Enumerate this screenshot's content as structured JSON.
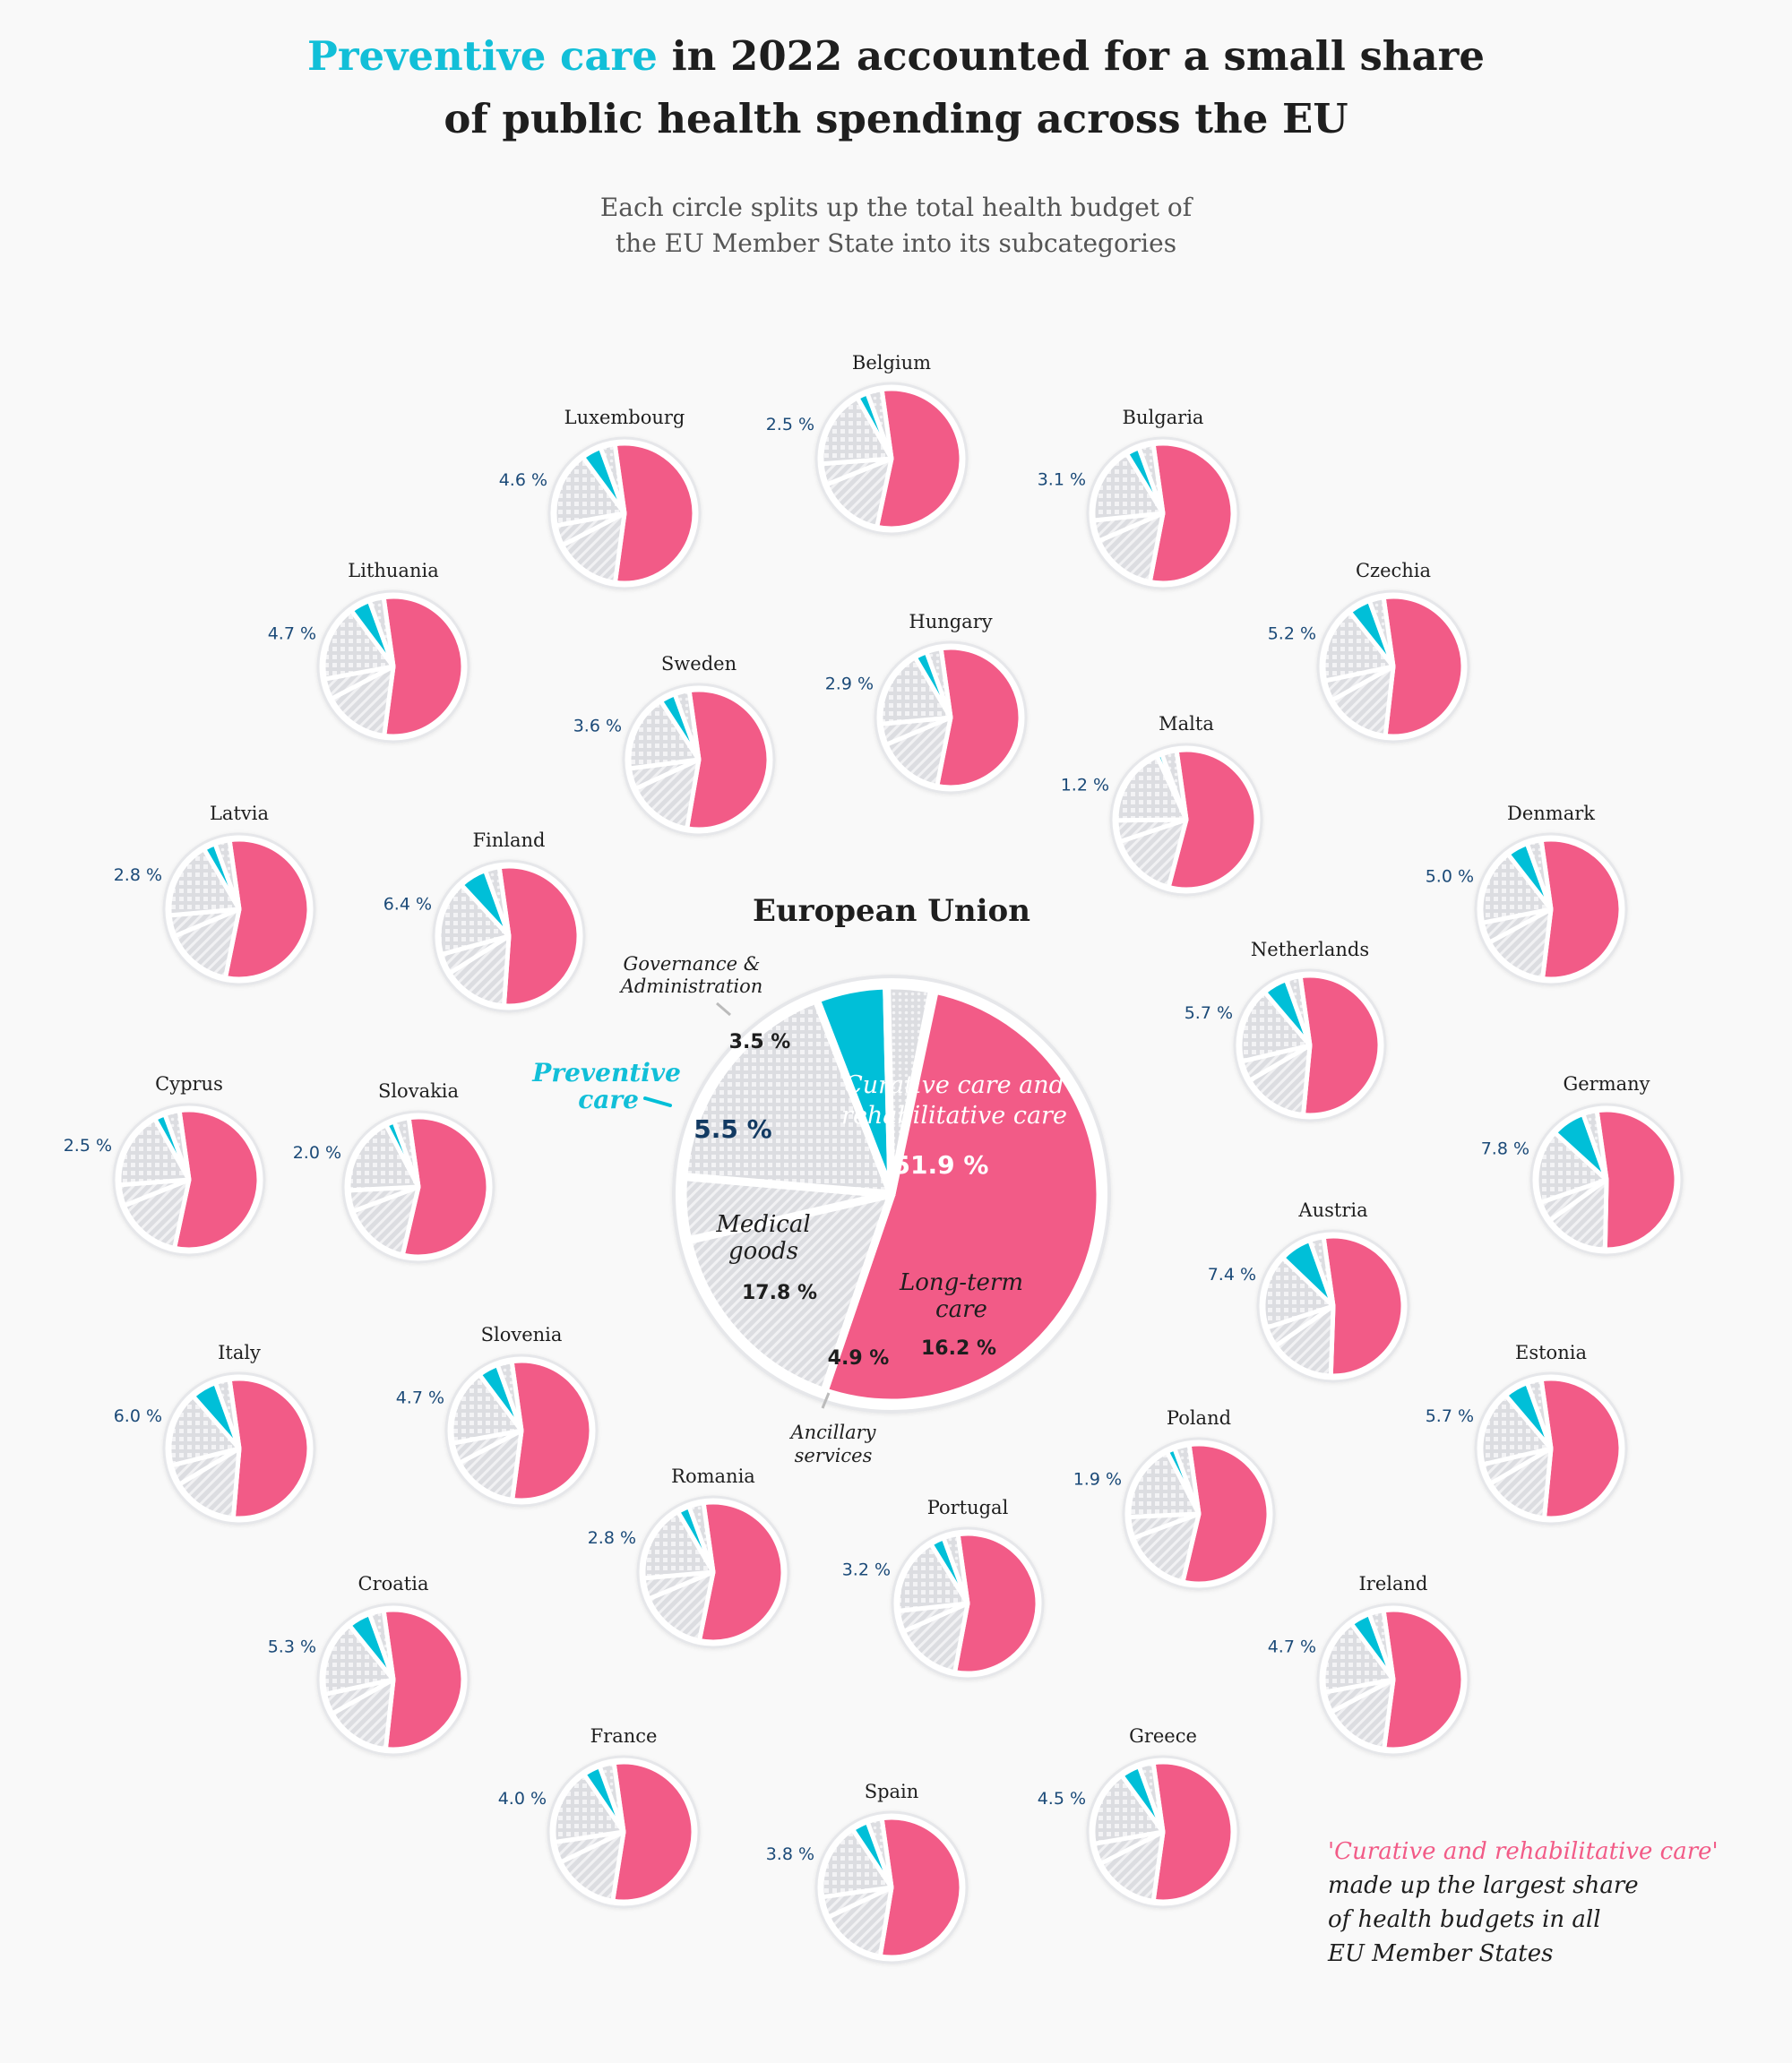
{
  "header": {
    "title_highlight": "Preventive care",
    "title_rest_line1": " in 2022 accounted for a small share",
    "title_line2": "of public health spending across the EU",
    "subtitle_line1": "Each circle splits up the total health budget of",
    "subtitle_line2": "the EU Member State into its subcategories"
  },
  "colors": {
    "preventive": "#00bfd8",
    "curative": "#f25b87",
    "other": "#dcdde1",
    "ring": "#e6e7ea",
    "pct_text": "#1b4a78"
  },
  "eu": {
    "name": "European Union",
    "segments": [
      {
        "key": "governance",
        "label_line1": "Governance &",
        "label_line2": "Administration",
        "value": 3.5,
        "display": "3.5 %"
      },
      {
        "key": "preventive",
        "label_line1": "Preventive",
        "label_line2": "care",
        "value": 5.5,
        "display": "5.5 %"
      },
      {
        "key": "curative",
        "label_line1": "Curative care and",
        "label_line2": "rehabilitative care",
        "value": 51.9,
        "display": "51.9 %"
      },
      {
        "key": "long_term",
        "label_line1": "Long-term",
        "label_line2": "care",
        "value": 16.2,
        "display": "16.2 %"
      },
      {
        "key": "ancillary",
        "label_line1": "Ancillary",
        "label_line2": "services",
        "value": 4.9,
        "display": "4.9 %"
      },
      {
        "key": "medical_goods",
        "label_line1": "Medical",
        "label_line2": "goods",
        "value": 17.8,
        "display": "17.8 %"
      }
    ]
  },
  "note": {
    "highlight": "'Curative and rehabilitative care'",
    "line1": "made up the largest share",
    "line2": "of health budgets in all",
    "line3": "EU Member States"
  },
  "chart_data": {
    "type": "pie",
    "title": "Preventive care in 2022 accounted for a small share of public health spending across the EU",
    "subtitle": "Each circle splits up the total health budget of the EU Member State into its subcategories",
    "unit": "% of health budget",
    "highlighted_category": "Preventive care",
    "eu_total": {
      "name": "European Union",
      "categories": [
        "Governance & Administration",
        "Preventive care",
        "Curative care and rehabilitative care",
        "Long-term care",
        "Ancillary services",
        "Medical goods"
      ],
      "values": [
        3.5,
        5.5,
        51.9,
        16.2,
        4.9,
        17.8
      ]
    },
    "countries_preventive_share": [
      {
        "name": "Belgium",
        "value": 2.5
      },
      {
        "name": "Luxembourg",
        "value": 4.6
      },
      {
        "name": "Bulgaria",
        "value": 3.1
      },
      {
        "name": "Lithuania",
        "value": 4.7
      },
      {
        "name": "Czechia",
        "value": 5.2
      },
      {
        "name": "Hungary",
        "value": 2.9
      },
      {
        "name": "Sweden",
        "value": 3.6
      },
      {
        "name": "Malta",
        "value": 1.2
      },
      {
        "name": "Latvia",
        "value": 2.8
      },
      {
        "name": "Denmark",
        "value": 5.0
      },
      {
        "name": "Finland",
        "value": 6.4
      },
      {
        "name": "Netherlands",
        "value": 5.7
      },
      {
        "name": "Cyprus",
        "value": 2.5
      },
      {
        "name": "Slovakia",
        "value": 2.0
      },
      {
        "name": "Germany",
        "value": 7.8
      },
      {
        "name": "Austria",
        "value": 7.4
      },
      {
        "name": "Italy",
        "value": 6.0
      },
      {
        "name": "Slovenia",
        "value": 4.7
      },
      {
        "name": "Estonia",
        "value": 5.7
      },
      {
        "name": "Poland",
        "value": 1.9
      },
      {
        "name": "Romania",
        "value": 2.8
      },
      {
        "name": "Portugal",
        "value": 3.2
      },
      {
        "name": "Croatia",
        "value": 5.3
      },
      {
        "name": "Ireland",
        "value": 4.7
      },
      {
        "name": "France",
        "value": 4.0
      },
      {
        "name": "Spain",
        "value": 3.8
      },
      {
        "name": "Greece",
        "value": 4.5
      }
    ],
    "annotation": "'Curative and rehabilitative care' made up the largest share of health budgets in all EU Member States"
  }
}
